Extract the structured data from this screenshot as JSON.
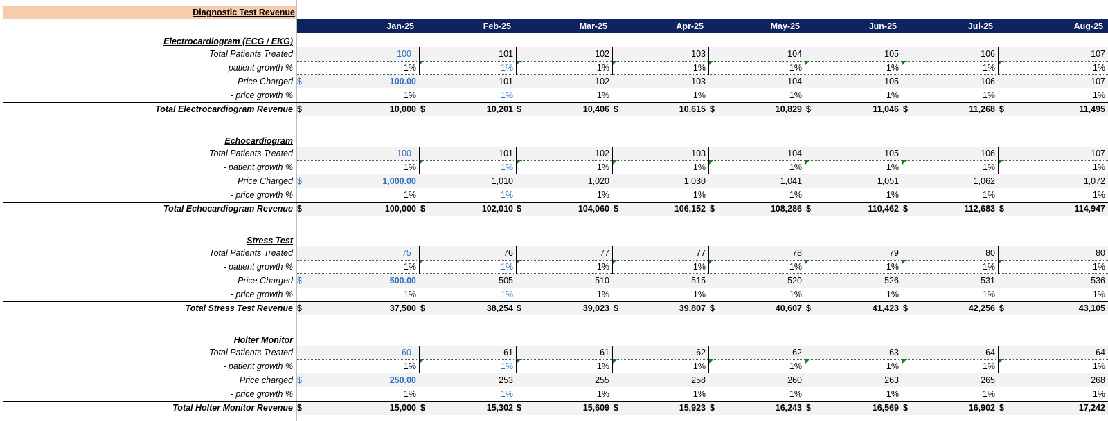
{
  "title": "Diagnostic Test Revenue",
  "months": [
    "Jan-25",
    "Feb-25",
    "Mar-25",
    "Apr-25",
    "May-25",
    "Jun-25",
    "Jul-25",
    "Aug-25"
  ],
  "currency_symbol": "$",
  "colors": {
    "header_bg": "#0d2461",
    "title_bg": "#f8cbad",
    "input_blue": "#2e6fc1",
    "flag_green": "#1f7a1f",
    "shade": "#f2f2f2"
  },
  "sections": [
    {
      "name": "Electrocardiogram (ECG / EKG)",
      "patients_label": "Total Patients Treated",
      "patients": [
        "100",
        "101",
        "102",
        "103",
        "104",
        "105",
        "106",
        "107"
      ],
      "patient_growth_label": "- patient growth %",
      "patient_growth": [
        "1%",
        "1%",
        "1%",
        "1%",
        "1%",
        "1%",
        "1%",
        "1%"
      ],
      "price_label": "Price Charged",
      "price": [
        "100.00",
        "101",
        "102",
        "103",
        "104",
        "105",
        "106",
        "107"
      ],
      "price_growth_label": "- price growth %",
      "price_growth": [
        "1%",
        "1%",
        "1%",
        "1%",
        "1%",
        "1%",
        "1%",
        "1%"
      ],
      "total_label": "Total Electrocardiogram Revenue",
      "total": [
        "10,000",
        "10,201",
        "10,406",
        "10,615",
        "10,829",
        "11,046",
        "11,268",
        "11,495"
      ]
    },
    {
      "name": "Echocardiogram",
      "patients_label": "Total Patients Treated",
      "patients": [
        "100",
        "101",
        "102",
        "103",
        "104",
        "105",
        "106",
        "107"
      ],
      "patient_growth_label": "- patient growth %",
      "patient_growth": [
        "1%",
        "1%",
        "1%",
        "1%",
        "1%",
        "1%",
        "1%",
        "1%"
      ],
      "price_label": "Price Charged",
      "price": [
        "1,000.00",
        "1,010",
        "1,020",
        "1,030",
        "1,041",
        "1,051",
        "1,062",
        "1,072"
      ],
      "price_growth_label": "- price growth %",
      "price_growth": [
        "1%",
        "1%",
        "1%",
        "1%",
        "1%",
        "1%",
        "1%",
        "1%"
      ],
      "total_label": "Total Echocardiogram Revenue",
      "total": [
        "100,000",
        "102,010",
        "104,060",
        "106,152",
        "108,286",
        "110,462",
        "112,683",
        "114,947"
      ]
    },
    {
      "name": "Stress Test",
      "patients_label": "Total Patients Treated",
      "patients": [
        "75",
        "76",
        "77",
        "77",
        "78",
        "79",
        "80",
        "80"
      ],
      "patient_growth_label": "- patient growth %",
      "patient_growth": [
        "1%",
        "1%",
        "1%",
        "1%",
        "1%",
        "1%",
        "1%",
        "1%"
      ],
      "price_label": "Price Charged",
      "price": [
        "500.00",
        "505",
        "510",
        "515",
        "520",
        "526",
        "531",
        "536"
      ],
      "price_growth_label": "- price growth %",
      "price_growth": [
        "1%",
        "1%",
        "1%",
        "1%",
        "1%",
        "1%",
        "1%",
        "1%"
      ],
      "total_label": "Total Stress Test Revenue",
      "total": [
        "37,500",
        "38,254",
        "39,023",
        "39,807",
        "40,607",
        "41,423",
        "42,256",
        "43,105"
      ]
    },
    {
      "name": "Holter Monitor",
      "patients_label": "Total Patients Treated",
      "patients": [
        "60",
        "61",
        "61",
        "62",
        "62",
        "63",
        "64",
        "64"
      ],
      "patient_growth_label": "- patient growth %",
      "patient_growth": [
        "1%",
        "1%",
        "1%",
        "1%",
        "1%",
        "1%",
        "1%",
        "1%"
      ],
      "price_label": "Price charged",
      "price": [
        "250.00",
        "253",
        "255",
        "258",
        "260",
        "263",
        "265",
        "268"
      ],
      "price_growth_label": "- price growth %",
      "price_growth": [
        "1%",
        "1%",
        "1%",
        "1%",
        "1%",
        "1%",
        "1%",
        "1%"
      ],
      "total_label": "Total Holter Monitor Revenue",
      "total": [
        "15,000",
        "15,302",
        "15,609",
        "15,923",
        "16,243",
        "16,569",
        "16,902",
        "17,242"
      ]
    }
  ]
}
